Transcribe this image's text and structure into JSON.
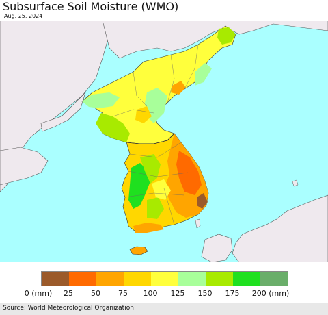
{
  "header": {
    "title": "Subsurface Soil Moisture (WMO)",
    "date": "Aug. 25, 2024"
  },
  "legend": {
    "ticks": [
      "0 (mm)",
      "25",
      "50",
      "75",
      "100",
      "125",
      "150",
      "175",
      "200 (mm)"
    ],
    "colors": [
      "#9b5a2a",
      "#ff6a00",
      "#ffa500",
      "#ffd700",
      "#ffff3c",
      "#a8ff9a",
      "#a8ea00",
      "#1fe01f",
      "#6aae6a"
    ]
  },
  "map_colors": {
    "sea": "#aaffff",
    "land_other": "#efe9ee",
    "border": "#333333"
  },
  "footer": {
    "source": "Source: World Meteorological Organization"
  }
}
